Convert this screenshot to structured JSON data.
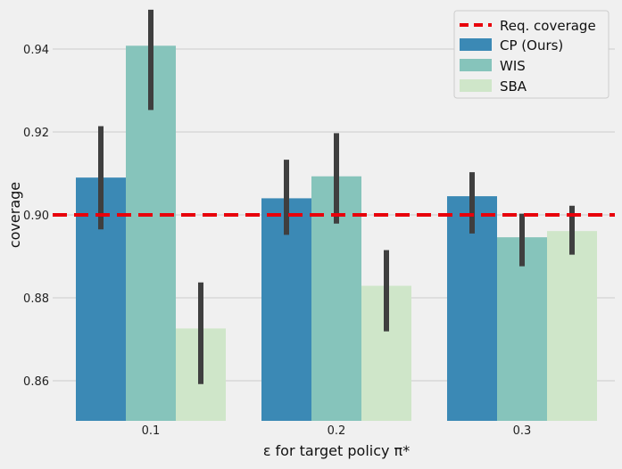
{
  "chart_data": {
    "type": "bar",
    "xlabel": "ε for target policy π*",
    "ylabel": "coverage",
    "categories": [
      "0.1",
      "0.2",
      "0.3"
    ],
    "ylim": [
      0.85,
      0.95
    ],
    "yticks": [
      "0.86",
      "0.88",
      "0.90",
      "0.92",
      "0.94"
    ],
    "grid": true,
    "legend_placement": "top-right",
    "reference_line": {
      "name": "Req. coverage",
      "value": 0.9,
      "color": "#e8000b",
      "style": "dashed"
    },
    "series": [
      {
        "name": "CP (Ours)",
        "color": "#3b89b5",
        "values": [
          0.909,
          0.904,
          0.9045
        ],
        "err_low": [
          0.8965,
          0.8952,
          0.8955
        ],
        "err_high": [
          0.9214,
          0.9133,
          0.9103
        ]
      },
      {
        "name": "WIS",
        "color": "#86c4bb",
        "values": [
          0.9408,
          0.9093,
          0.8946
        ],
        "err_low": [
          0.9253,
          0.8979,
          0.8876
        ],
        "err_high": [
          0.9495,
          0.9197,
          0.9003
        ]
      },
      {
        "name": "SBA",
        "color": "#cfe6c9",
        "values": [
          0.8726,
          0.8829,
          0.8961
        ],
        "err_low": [
          0.8592,
          0.8719,
          0.8904
        ],
        "err_high": [
          0.8837,
          0.8915,
          0.9022
        ]
      }
    ]
  }
}
